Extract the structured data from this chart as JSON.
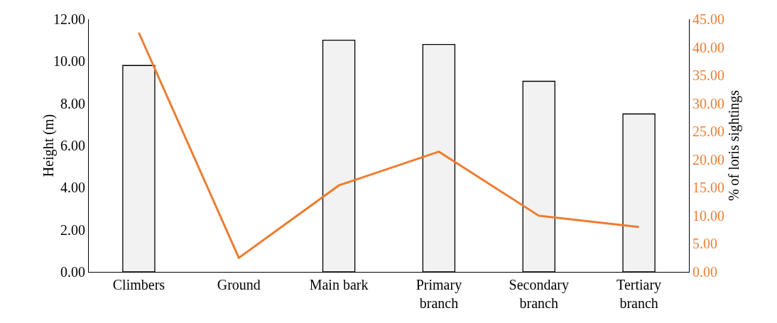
{
  "chart_data": {
    "type": "bar",
    "ylabel": "Height (m)",
    "y2label": "% of loris sightings",
    "categories": [
      "Climbers",
      "Ground",
      "Main bark",
      "Primary branch",
      "Secondary branch",
      "Tertiary branch"
    ],
    "series": [
      {
        "color": "#f2f2f2",
        "values": [
          9.8,
          null,
          11.0,
          10.8,
          9.05,
          7.5
        ]
      },
      {
        "type": "line",
        "axis": "y2",
        "color": "#ed7d31",
        "values": [
          42.6,
          2.5,
          15.4,
          21.4,
          10.0,
          8.0
        ]
      }
    ],
    "ylim": [
      0,
      12
    ],
    "yticks": [
      {
        "value": 0,
        "label": "0.00"
      },
      {
        "value": 2,
        "label": "2.00"
      },
      {
        "value": 4,
        "label": "4.00"
      },
      {
        "value": 6,
        "label": "6.00"
      },
      {
        "value": 8,
        "label": "8.00"
      },
      {
        "value": 10,
        "label": "10.00"
      },
      {
        "value": 12,
        "label": "12.00"
      }
    ],
    "y2lim": [
      0,
      45
    ],
    "y2ticks": [
      {
        "value": 0,
        "label": "0.00"
      },
      {
        "value": 5,
        "label": "5.00"
      },
      {
        "value": 10,
        "label": "10.00"
      },
      {
        "value": 15,
        "label": "15.00"
      },
      {
        "value": 20,
        "label": "20.00"
      },
      {
        "value": 25,
        "label": "25.00"
      },
      {
        "value": 30,
        "label": "30.00"
      },
      {
        "value": 35,
        "label": "35.00"
      },
      {
        "value": 40,
        "label": "40.00"
      },
      {
        "value": 45,
        "label": "45.00"
      }
    ],
    "grid": false,
    "legend": false,
    "marker": "none"
  }
}
